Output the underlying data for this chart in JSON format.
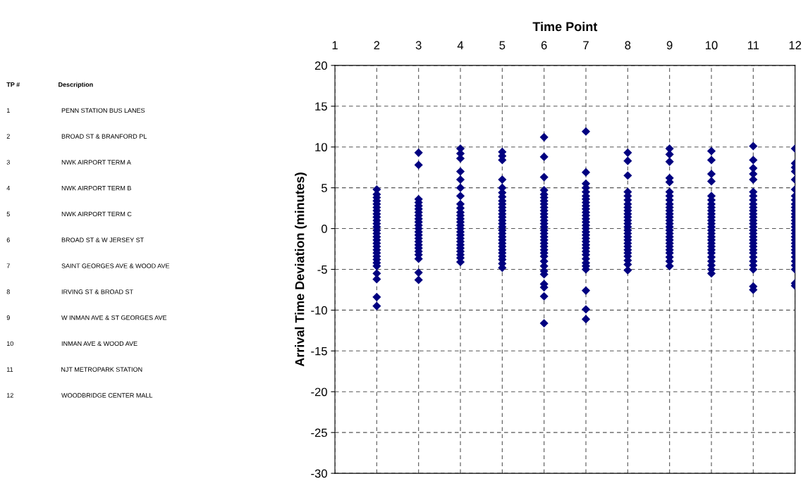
{
  "chart_data": [
    {
      "type": "other",
      "annotations": [
        "TP #",
        "Description",
        "1 PENN STATION BUS LANES",
        "2 BROAD ST & BRANFORD PL",
        "3 NWK AIRPORT TERM A",
        "4 NWK AIRPORT TERM B",
        "5 NWK AIRPORT TERM C",
        "6 BROAD ST & W JERSEY ST",
        "7 SAINT GEORGES AVE & WOOD AVE",
        "8 IRVING ST & BROAD ST",
        "9 W INMAN AVE & ST GEORGES AVE",
        "10 INMAN AVE & WOOD AVE",
        "11 NJT METROPARK STATION",
        "12 WOODBRIDGE CENTER MALL"
      ]
    },
    {
      "type": "scatter",
      "xlabel": "Time Point",
      "ylabel": "Arrival Time Deviation (minutes)",
      "xlim": [
        1,
        12
      ],
      "xticks": [
        1,
        2,
        3,
        4,
        5,
        6,
        7,
        8,
        9,
        10,
        11,
        12
      ],
      "ylim": [
        -30,
        20
      ],
      "yticks": [
        -30,
        -25,
        -20,
        -15,
        -10,
        -5,
        0,
        5,
        10,
        15,
        20
      ],
      "grid": true,
      "marker": "diamond",
      "series": [
        {
          "color": "#000080",
          "x": [
            2,
            2,
            2,
            2,
            2,
            2,
            2,
            2,
            2,
            2,
            2,
            2,
            2,
            2,
            2,
            2,
            2,
            2,
            2,
            2,
            2,
            2,
            2,
            2,
            2,
            2,
            2,
            2
          ],
          "values": [
            4.8,
            4.2,
            3.8,
            3.4,
            3,
            2.6,
            2.2,
            1.8,
            1.4,
            1,
            0.6,
            0.2,
            -0.2,
            -0.6,
            -1,
            -1.4,
            -1.8,
            -2.2,
            -2.6,
            -3,
            -3.4,
            -3.8,
            -4.2,
            -4.6,
            -5.5,
            -6.2,
            -8.4,
            -9.5
          ]
        },
        {
          "color": "#000080",
          "x": [
            3,
            3,
            3,
            3,
            3,
            3,
            3,
            3,
            3,
            3,
            3,
            3,
            3,
            3,
            3,
            3,
            3,
            3,
            3,
            3,
            3,
            3,
            3
          ],
          "values": [
            9.3,
            7.8,
            3.6,
            3.2,
            2.8,
            2.4,
            2,
            1.6,
            1.2,
            0.8,
            0.4,
            0,
            -0.4,
            -0.8,
            -1.2,
            -1.6,
            -2,
            -2.4,
            -2.8,
            -3.2,
            -3.7,
            -5.4,
            -6.3
          ]
        },
        {
          "color": "#000080",
          "x": [
            4,
            4,
            4,
            4,
            4,
            4,
            4,
            4,
            4,
            4,
            4,
            4,
            4,
            4,
            4,
            4,
            4,
            4,
            4,
            4,
            4,
            4,
            4,
            4,
            4
          ],
          "values": [
            9.8,
            9.2,
            8.6,
            7,
            6,
            5,
            4,
            3,
            2.5,
            2,
            1.6,
            1.2,
            0.8,
            0.4,
            0,
            -0.4,
            -0.8,
            -1.2,
            -1.6,
            -2,
            -2.4,
            -2.8,
            -3.2,
            -3.6,
            -4.1
          ]
        },
        {
          "color": "#000080",
          "x": [
            5,
            5,
            5,
            5,
            5,
            5,
            5,
            5,
            5,
            5,
            5,
            5,
            5,
            5,
            5,
            5,
            5,
            5,
            5,
            5,
            5,
            5,
            5,
            5,
            5,
            5,
            5,
            5
          ],
          "values": [
            9.4,
            8.9,
            8.4,
            6,
            5,
            4.4,
            3.9,
            3.4,
            3,
            2.6,
            2.2,
            1.8,
            1.4,
            1,
            0.6,
            0.2,
            -0.2,
            -0.6,
            -1,
            -1.4,
            -1.8,
            -2.2,
            -2.6,
            -3,
            -3.4,
            -3.8,
            -4.3,
            -4.8
          ]
        },
        {
          "color": "#000080",
          "x": [
            6,
            6,
            6,
            6,
            6,
            6,
            6,
            6,
            6,
            6,
            6,
            6,
            6,
            6,
            6,
            6,
            6,
            6,
            6,
            6,
            6,
            6,
            6,
            6,
            6,
            6,
            6,
            6,
            6,
            6,
            6,
            6
          ],
          "values": [
            11.2,
            8.8,
            6.3,
            4.7,
            4.2,
            3.8,
            3.4,
            3,
            2.6,
            2.2,
            1.8,
            1.4,
            1,
            0.6,
            0.2,
            -0.2,
            -0.6,
            -1,
            -1.4,
            -1.8,
            -2.2,
            -2.6,
            -3,
            -3.4,
            -4,
            -4.6,
            -5.2,
            -5.6,
            -6.8,
            -7.2,
            -8.3,
            -11.6
          ]
        },
        {
          "color": "#000080",
          "x": [
            7,
            7,
            7,
            7,
            7,
            7,
            7,
            7,
            7,
            7,
            7,
            7,
            7,
            7,
            7,
            7,
            7,
            7,
            7,
            7,
            7,
            7,
            7,
            7,
            7,
            7,
            7,
            7,
            7,
            7,
            7
          ],
          "values": [
            11.9,
            6.9,
            5.5,
            5,
            4.5,
            4,
            3.6,
            3.2,
            2.8,
            2.4,
            2,
            1.6,
            1.2,
            0.8,
            0.4,
            0,
            -0.4,
            -0.8,
            -1.2,
            -1.6,
            -2,
            -2.4,
            -2.8,
            -3.2,
            -3.7,
            -4.2,
            -4.6,
            -5,
            -7.6,
            -9.9,
            -11.1
          ]
        },
        {
          "color": "#000080",
          "x": [
            8,
            8,
            8,
            8,
            8,
            8,
            8,
            8,
            8,
            8,
            8,
            8,
            8,
            8,
            8,
            8,
            8,
            8,
            8,
            8,
            8,
            8,
            8,
            8,
            8,
            8
          ],
          "values": [
            9.3,
            8.3,
            6.5,
            4.5,
            4,
            3.5,
            3,
            2.6,
            2.2,
            1.8,
            1.4,
            1,
            0.6,
            0.2,
            -0.2,
            -0.6,
            -1,
            -1.4,
            -1.8,
            -2.2,
            -2.6,
            -3,
            -3.4,
            -3.9,
            -4.4,
            -5.1
          ]
        },
        {
          "color": "#000080",
          "x": [
            9,
            9,
            9,
            9,
            9,
            9,
            9,
            9,
            9,
            9,
            9,
            9,
            9,
            9,
            9,
            9,
            9,
            9,
            9,
            9,
            9,
            9,
            9,
            9,
            9,
            9,
            9
          ],
          "values": [
            9.8,
            9.1,
            8.2,
            6.2,
            5.7,
            4.5,
            4,
            3.5,
            3,
            2.6,
            2.2,
            1.8,
            1.4,
            1,
            0.6,
            0.2,
            -0.2,
            -0.6,
            -1,
            -1.4,
            -1.8,
            -2.2,
            -2.6,
            -3,
            -3.5,
            -4,
            -4.6
          ]
        },
        {
          "color": "#000080",
          "x": [
            10,
            10,
            10,
            10,
            10,
            10,
            10,
            10,
            10,
            10,
            10,
            10,
            10,
            10,
            10,
            10,
            10,
            10,
            10,
            10,
            10,
            10,
            10,
            10,
            10,
            10,
            10
          ],
          "values": [
            9.5,
            8.4,
            6.7,
            5.8,
            4,
            3.5,
            3,
            2.6,
            2.2,
            1.8,
            1.4,
            1,
            0.6,
            0.2,
            -0.2,
            -0.6,
            -1,
            -1.4,
            -1.8,
            -2.2,
            -2.6,
            -3,
            -3.5,
            -4,
            -4.5,
            -5,
            -5.5
          ]
        },
        {
          "color": "#000080",
          "x": [
            11,
            11,
            11,
            11,
            11,
            11,
            11,
            11,
            11,
            11,
            11,
            11,
            11,
            11,
            11,
            11,
            11,
            11,
            11,
            11,
            11,
            11,
            11,
            11,
            11,
            11,
            11,
            11,
            11,
            11
          ],
          "values": [
            10.1,
            8.4,
            7.4,
            6.7,
            6,
            4.5,
            4,
            3.5,
            3,
            2.6,
            2.2,
            1.8,
            1.4,
            1,
            0.6,
            0.2,
            -0.2,
            -0.6,
            -1,
            -1.4,
            -1.8,
            -2.2,
            -2.6,
            -3,
            -3.5,
            -4,
            -4.5,
            -5,
            -7.1,
            -7.5
          ]
        },
        {
          "color": "#000080",
          "x": [
            12,
            12,
            12,
            12,
            12,
            12,
            12,
            12,
            12,
            12,
            12,
            12,
            12,
            12,
            12,
            12,
            12,
            12,
            12,
            12,
            12,
            12,
            12,
            12,
            12,
            12,
            12,
            12,
            12,
            12
          ],
          "values": [
            9.8,
            8,
            7.5,
            7,
            6,
            4.8,
            4,
            3.5,
            3,
            2.6,
            2.2,
            1.8,
            1.4,
            1,
            0.6,
            0.2,
            -0.2,
            -0.6,
            -1,
            -1.4,
            -1.8,
            -2.2,
            -2.6,
            -3,
            -3.5,
            -4,
            -4.5,
            -5,
            -6.7,
            -7
          ]
        }
      ]
    }
  ]
}
